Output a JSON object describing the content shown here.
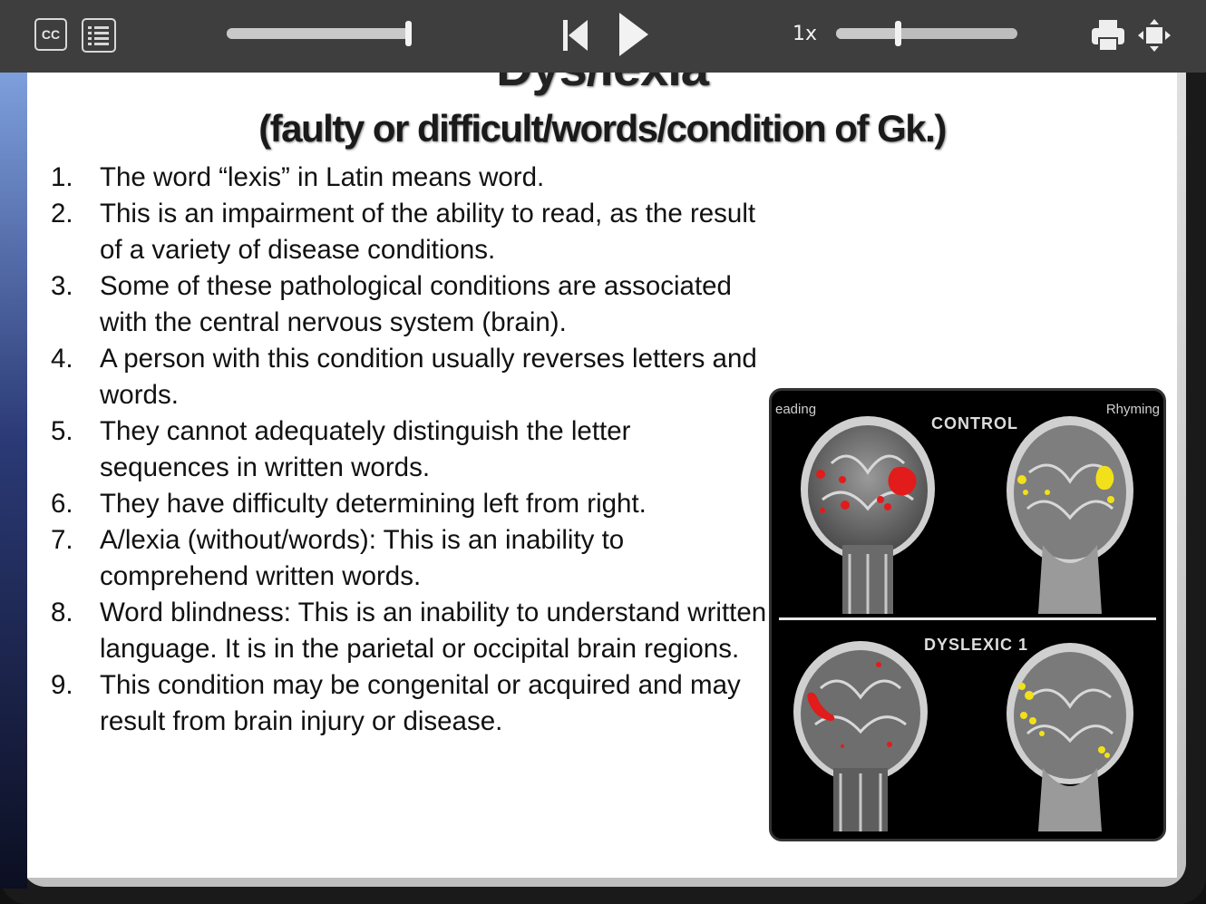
{
  "toolbar": {
    "cc_label": "CC",
    "speed_label": "1x",
    "progress_fraction": 0.98,
    "volume_fraction": 0.34
  },
  "slide": {
    "title": "Dys/lexia",
    "subtitle": "(faulty or difficult/words/condition of Gk.)",
    "points": [
      {
        "num": "1.",
        "text": "The word “lexis” in Latin means word."
      },
      {
        "num": "2.",
        "text": "This is an impairment of the ability to read, as the result of a variety of disease conditions."
      },
      {
        "num": "3.",
        "text": "Some of these pathological conditions are associated with the central nervous system (brain)."
      },
      {
        "num": "4.",
        "text": "A person with this condition usually reverses letters and words."
      },
      {
        "num": "5.",
        "text": "They cannot adequately distinguish the letter sequences in written words."
      },
      {
        "num": "6.",
        "text": "They have difficulty determining left from right."
      },
      {
        "num": "7.",
        "text": "A/lexia (without/words): This is an inability to comprehend written words."
      },
      {
        "num": "8.",
        "text": "Word blindness: This is an inability to understand written language. It is in the parietal or occipital brain regions."
      },
      {
        "num": "9.",
        "text": "This condition may be congenital or acquired and may result from brain injury or disease."
      }
    ],
    "image": {
      "left_label": "eading",
      "right_label": "Rhyming",
      "top_label": "CONTROL",
      "bottom_label": "DYSLEXIC 1",
      "highlight_colors": {
        "reading": "#e21b1b",
        "rhyming": "#f2e11a"
      }
    }
  }
}
